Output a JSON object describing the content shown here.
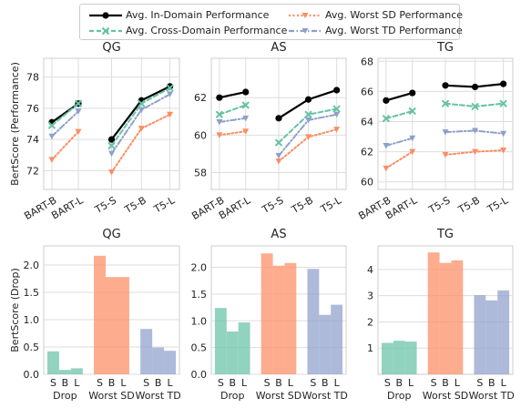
{
  "legend": {
    "items": [
      {
        "label": "Avg. In-Domain Performance",
        "color": "#000000",
        "style": "solid",
        "marker": "circle"
      },
      {
        "label": "Avg. Cross-Domain Performance",
        "color": "#66c2a5",
        "style": "dashed",
        "marker": "x"
      },
      {
        "label": "Avg. Worst SD Performance",
        "color": "#fc8d62",
        "style": "dotted",
        "marker": "triangle-down"
      },
      {
        "label": "Avg. Worst TD Performance",
        "color": "#8da0cb",
        "style": "dashdot",
        "marker": "triangle-down"
      }
    ]
  },
  "chart_data": [
    {
      "type": "line",
      "title": "QG",
      "ylabel": "BertScore (Performance)",
      "categories": [
        "BART-B",
        "BART-L",
        "T5-S",
        "T5-B",
        "T5-L"
      ],
      "ylim": [
        70.8,
        79.2
      ],
      "yticks": [
        72,
        74,
        76,
        78
      ],
      "groups": [
        [
          0,
          1
        ],
        [
          2,
          3,
          4
        ]
      ],
      "series": [
        {
          "name": "Avg. In-Domain Performance",
          "values": [
            75.1,
            76.3,
            74.0,
            76.5,
            77.4
          ]
        },
        {
          "name": "Avg. Cross-Domain Performance",
          "values": [
            74.9,
            76.3,
            73.6,
            76.3,
            77.3
          ]
        },
        {
          "name": "Avg. Worst SD Performance",
          "values": [
            72.7,
            74.5,
            71.9,
            74.7,
            75.6
          ]
        },
        {
          "name": "Avg. Worst TD Performance",
          "values": [
            74.2,
            75.8,
            73.1,
            75.9,
            76.9
          ]
        }
      ]
    },
    {
      "type": "line",
      "title": "AS",
      "ylabel": "",
      "categories": [
        "BART-B",
        "BART-L",
        "T5-S",
        "T5-B",
        "T5-L"
      ],
      "ylim": [
        57.1,
        64.1
      ],
      "yticks": [
        58,
        60,
        62
      ],
      "groups": [
        [
          0,
          1
        ],
        [
          2,
          3,
          4
        ]
      ],
      "series": [
        {
          "name": "Avg. In-Domain Performance",
          "values": [
            62.0,
            62.3,
            60.9,
            61.9,
            62.4
          ]
        },
        {
          "name": "Avg. Cross-Domain Performance",
          "values": [
            61.1,
            61.6,
            59.6,
            61.1,
            61.4
          ]
        },
        {
          "name": "Avg. Worst SD Performance",
          "values": [
            60.0,
            60.2,
            58.6,
            59.9,
            60.3
          ]
        },
        {
          "name": "Avg. Worst TD Performance",
          "values": [
            60.7,
            60.9,
            58.9,
            60.8,
            61.1
          ]
        }
      ]
    },
    {
      "type": "line",
      "title": "TG",
      "ylabel": "",
      "categories": [
        "BART-B",
        "BART-L",
        "T5-S",
        "T5-B",
        "T5-L"
      ],
      "ylim": [
        59.5,
        68.2
      ],
      "yticks": [
        60,
        62,
        64,
        66,
        68
      ],
      "groups": [
        [
          0,
          1
        ],
        [
          2,
          3,
          4
        ]
      ],
      "series": [
        {
          "name": "Avg. In-Domain Performance",
          "values": [
            65.4,
            65.9,
            66.4,
            66.3,
            66.5
          ]
        },
        {
          "name": "Avg. Cross-Domain Performance",
          "values": [
            64.2,
            64.7,
            65.2,
            65.0,
            65.2
          ]
        },
        {
          "name": "Avg. Worst SD Performance",
          "values": [
            60.9,
            62.0,
            61.8,
            62.0,
            62.1
          ]
        },
        {
          "name": "Avg. Worst TD Performance",
          "values": [
            62.4,
            62.9,
            63.3,
            63.4,
            63.2
          ]
        }
      ]
    },
    {
      "type": "bar",
      "title": "QG",
      "ylabel": "BertScore (Drop)",
      "groups": [
        "Drop",
        "Worst SD",
        "Worst TD"
      ],
      "sizes": [
        "S",
        "B",
        "L"
      ],
      "ylim": [
        0,
        2.35
      ],
      "yticks": [
        0.0,
        0.5,
        1.0,
        1.5,
        2.0
      ],
      "values": [
        [
          0.42,
          0.08,
          0.11
        ],
        [
          2.17,
          1.78,
          1.78
        ],
        [
          0.83,
          0.49,
          0.43
        ]
      ]
    },
    {
      "type": "bar",
      "title": "AS",
      "ylabel": "",
      "groups": [
        "Drop",
        "Worst SD",
        "Worst TD"
      ],
      "sizes": [
        "S",
        "B",
        "L"
      ],
      "ylim": [
        0,
        2.4
      ],
      "yticks": [
        0.0,
        0.5,
        1.0,
        1.5,
        2.0
      ],
      "values": [
        [
          1.24,
          0.8,
          0.97
        ],
        [
          2.26,
          2.03,
          2.08
        ],
        [
          1.97,
          1.11,
          1.3
        ]
      ]
    },
    {
      "type": "bar",
      "title": "TG",
      "ylabel": "",
      "groups": [
        "Drop",
        "Worst SD",
        "Worst TD"
      ],
      "sizes": [
        "S",
        "B",
        "L"
      ],
      "ylim": [
        0,
        4.9
      ],
      "yticks": [
        1,
        2,
        3,
        4
      ],
      "values": [
        [
          1.2,
          1.28,
          1.25
        ],
        [
          4.65,
          4.25,
          4.35
        ],
        [
          3.02,
          2.82,
          3.2
        ]
      ]
    }
  ],
  "bar_colors": [
    "#66c2a5",
    "#fc8d62",
    "#8da0cb"
  ]
}
